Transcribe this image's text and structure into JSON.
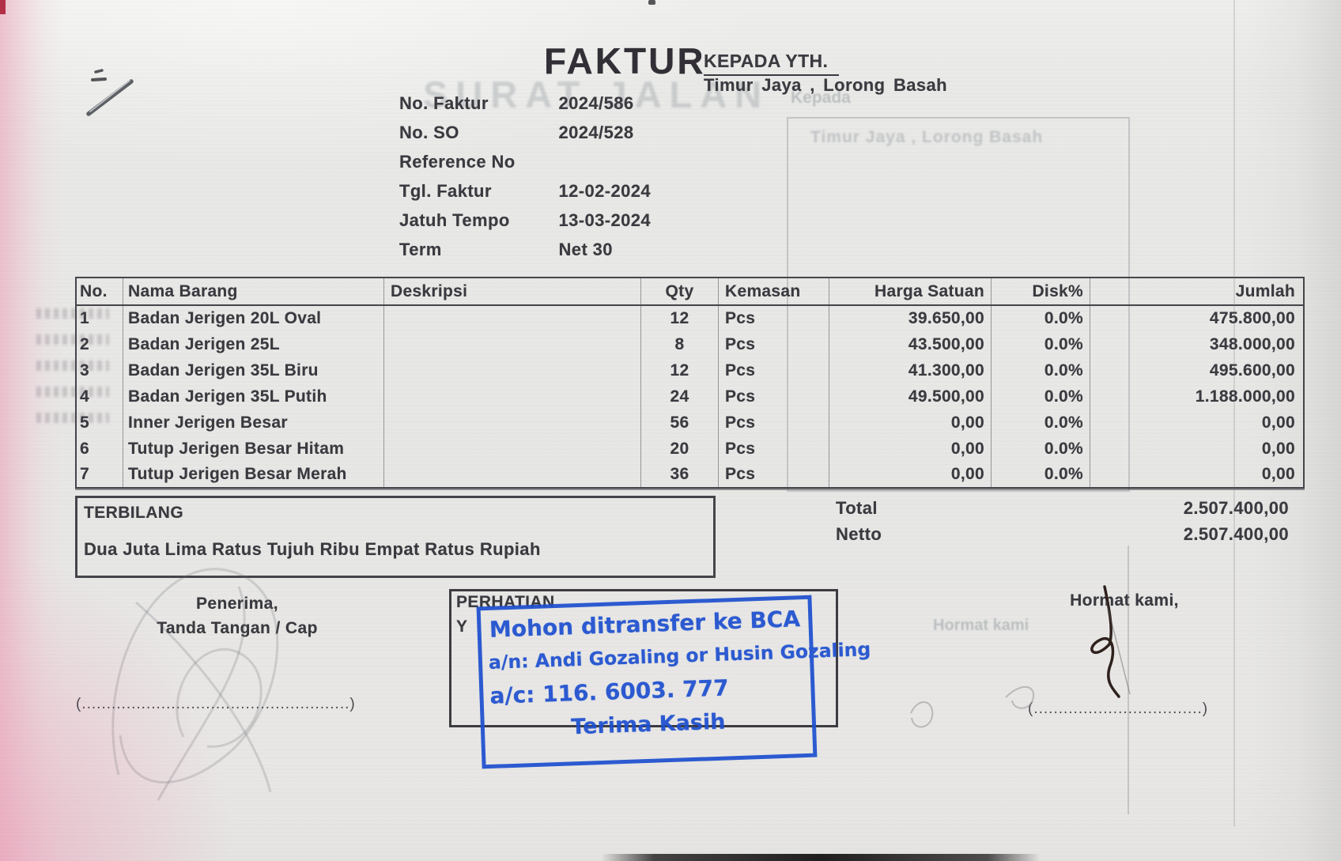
{
  "invoice": {
    "title": "FAKTUR",
    "recipient_label": "KEPADA YTH.",
    "recipient_name": "Timur Jaya , Lorong Basah",
    "meta": [
      {
        "label": "No. Faktur",
        "value": "2024/586"
      },
      {
        "label": "No. SO",
        "value": "2024/528"
      },
      {
        "label": "Reference No",
        "value": ""
      },
      {
        "label": "Tgl. Faktur",
        "value": "12-02-2024"
      },
      {
        "label": "Jatuh Tempo",
        "value": "13-03-2024"
      },
      {
        "label": "Term",
        "value": "Net 30"
      }
    ],
    "table": {
      "columns": [
        "No.",
        "Nama Barang",
        "Deskripsi",
        "Qty",
        "Kemasan",
        "Harga Satuan",
        "Disk%",
        "Jumlah"
      ],
      "rows": [
        [
          "1",
          "Badan Jerigen 20L Oval",
          "",
          "12",
          "Pcs",
          "39.650,00",
          "0.0%",
          "475.800,00"
        ],
        [
          "2",
          "Badan Jerigen 25L",
          "",
          "8",
          "Pcs",
          "43.500,00",
          "0.0%",
          "348.000,00"
        ],
        [
          "3",
          "Badan Jerigen 35L Biru",
          "",
          "12",
          "Pcs",
          "41.300,00",
          "0.0%",
          "495.600,00"
        ],
        [
          "4",
          "Badan Jerigen 35L Putih",
          "",
          "24",
          "Pcs",
          "49.500,00",
          "0.0%",
          "1.188.000,00"
        ],
        [
          "5",
          "Inner Jerigen Besar",
          "",
          "56",
          "Pcs",
          "0,00",
          "0.0%",
          "0,00"
        ],
        [
          "6",
          "Tutup Jerigen Besar Hitam",
          "",
          "20",
          "Pcs",
          "0,00",
          "0.0%",
          "0,00"
        ],
        [
          "7",
          "Tutup Jerigen Besar Merah",
          "",
          "36",
          "Pcs",
          "0,00",
          "0.0%",
          "0,00"
        ]
      ]
    },
    "terbilang_label": "TERBILANG",
    "terbilang_text": "Dua Juta Lima Ratus Tujuh Ribu Empat Ratus Rupiah",
    "summary": [
      {
        "label": "Total",
        "value": "2.507.400,00"
      },
      {
        "label": "Netto",
        "value": "2.507.400,00"
      }
    ],
    "sign_left_line1": "Penerima,",
    "sign_left_line2": "Tanda Tangan / Cap",
    "sign_left_dots": "(......................................................)",
    "sign_right_line1": "Hormat kami,",
    "sign_right_dots": "(..................................)",
    "attention_label": "PERHATIAN",
    "attention_partial": "Y",
    "stamp": {
      "line1": "Mohon ditransfer ke BCA",
      "line2": "a/n: Andi Gozaling or Husin Gozaling",
      "line3": "a/c: 116. 6003. 777",
      "line4": "Terima Kasih",
      "ink_color": "#1e50d0"
    },
    "ghost": {
      "watermark": "SURAT JALAN",
      "kepada": "Kepada",
      "address": "Timur Jaya , Lorong Basah",
      "hormat": "Hormat kami"
    }
  }
}
